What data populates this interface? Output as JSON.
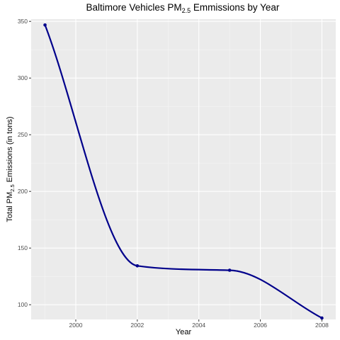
{
  "chart_data": {
    "type": "line",
    "title": {
      "main": "Baltimore Vehicles PM",
      "sub": "2.5",
      "rest": " Emmissions by Year"
    },
    "xlabel": "Year",
    "ylabel": {
      "main": "Total PM",
      "sub": "2.5",
      "rest": " Emissions (in tons)"
    },
    "x": [
      1999,
      2002,
      2005,
      2008
    ],
    "series": [
      {
        "values": [
          346.82,
          134.31,
          130.43,
          88.28
        ],
        "color": "#00008B"
      }
    ],
    "xlim": [
      1998.55,
      2008.45
    ],
    "ylim": [
      87.0,
      352.0
    ],
    "x_ticks": [
      2000,
      2002,
      2004,
      2006,
      2008
    ],
    "y_ticks": [
      100,
      150,
      200,
      250,
      300,
      350
    ],
    "grid": true,
    "smooth": true,
    "colors": {
      "panel": "#EBEBEB",
      "grid_major": "#FFFFFF",
      "line": "#00008B"
    }
  }
}
